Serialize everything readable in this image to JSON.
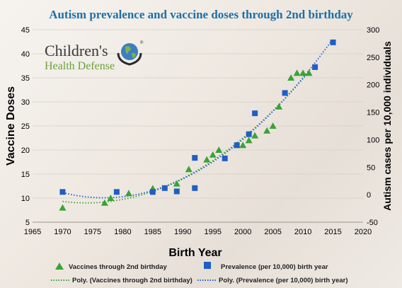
{
  "logo": {
    "line1": "Children's",
    "line2": "Health Defense",
    "mark": "®",
    "icon": "globe-in-hands-icon",
    "color_dark": "#3a3a3a",
    "color_green": "#6aa23a"
  },
  "chart_data": {
    "type": "scatter",
    "title": "Autism prevalence and vaccine doses through 2nd birthday",
    "xlabel": "Birth Year",
    "ylabel_left": "Vaccine Doses",
    "ylabel_right": "Autism cases per 10,000 individuals",
    "xlim": [
      1965,
      2020
    ],
    "xticks": [
      1965,
      1970,
      1975,
      1980,
      1985,
      1990,
      1995,
      2000,
      2005,
      2010,
      2015,
      2020
    ],
    "ylim_left": [
      5,
      45
    ],
    "yticks_left": [
      5,
      10,
      15,
      20,
      25,
      30,
      35,
      40,
      45
    ],
    "ylim_right": [
      -50,
      300
    ],
    "yticks_right": [
      -50,
      0,
      50,
      100,
      150,
      200,
      250,
      300
    ],
    "series": [
      {
        "name": "Vaccines through 2nd birthday",
        "axis": "left",
        "marker": "triangle",
        "color": "#3aa335",
        "x": [
          1970,
          1977,
          1978,
          1981,
          1985,
          1989,
          1991,
          1994,
          1995,
          1996,
          1999,
          2000,
          2001,
          2002,
          2004,
          2005,
          2006,
          2008,
          2009,
          2010,
          2011
        ],
        "y": [
          8,
          9,
          10,
          11,
          12,
          13,
          16,
          18,
          19,
          20,
          21,
          21,
          22,
          23,
          24,
          25,
          29,
          35,
          36,
          36,
          36
        ]
      },
      {
        "name": "Prevalence (per 10,000) birth year",
        "axis": "right",
        "marker": "square",
        "color": "#1f5fc4",
        "x": [
          1970,
          1979,
          1985,
          1987,
          1989,
          1992,
          1992,
          1997,
          1999,
          2001,
          2002,
          2007,
          2012,
          2015
        ],
        "y": [
          5,
          5,
          5,
          12,
          6,
          12,
          67,
          66,
          90,
          110,
          148,
          185,
          232,
          277
        ]
      }
    ],
    "trendlines": [
      {
        "name": "Poly. (Vaccines through 2nd birthday)",
        "axis": "left",
        "color": "#3aa335",
        "style": "dotted",
        "fit": "polynomial"
      },
      {
        "name": "Poly. (Prevalence (per 10,000) birth year)",
        "axis": "right",
        "color": "#1f5fc4",
        "style": "dotted",
        "fit": "polynomial"
      }
    ],
    "grid": true,
    "legend_position": "bottom"
  }
}
